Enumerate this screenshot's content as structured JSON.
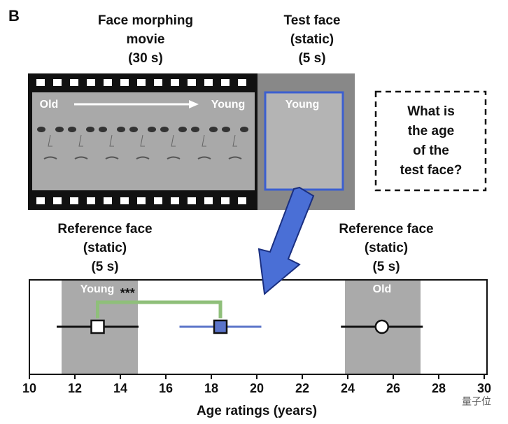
{
  "panel_label": "B",
  "movie": {
    "title_lines": [
      "Face morphing",
      "movie",
      "(30 s)"
    ],
    "start_label": "Old",
    "end_label": "Young"
  },
  "test_face": {
    "title_lines": [
      "Test face",
      "(static)",
      "(5 s)"
    ],
    "label": "Young"
  },
  "question_lines": [
    "What is",
    "the age",
    "of the",
    "test face?"
  ],
  "reference_left": {
    "title_lines": [
      "Reference face",
      "(static)",
      "(5 s)"
    ],
    "label": "Young"
  },
  "reference_right": {
    "title_lines": [
      "Reference face",
      "(static)",
      "(5 s)"
    ],
    "label": "Old"
  },
  "watermark": "量子位",
  "chart_data": {
    "type": "errorpoint",
    "values": [
      13.0,
      18.4,
      25.5
    ],
    "errors": [
      1.8,
      1.8,
      1.8
    ],
    "markers": [
      "square",
      "square",
      "circle"
    ],
    "colors": [
      "#ffffff",
      "#5b74c9",
      "#ffffff"
    ],
    "line_colors": [
      "#111111",
      "#5b74c9",
      "#111111"
    ],
    "significance": "***",
    "significance_color": "#8fbf7a",
    "xlim": [
      10,
      30
    ],
    "xticks": [
      10,
      12,
      14,
      16,
      18,
      20,
      22,
      24,
      26,
      28,
      30
    ],
    "xlabel": "Age ratings (years)"
  }
}
